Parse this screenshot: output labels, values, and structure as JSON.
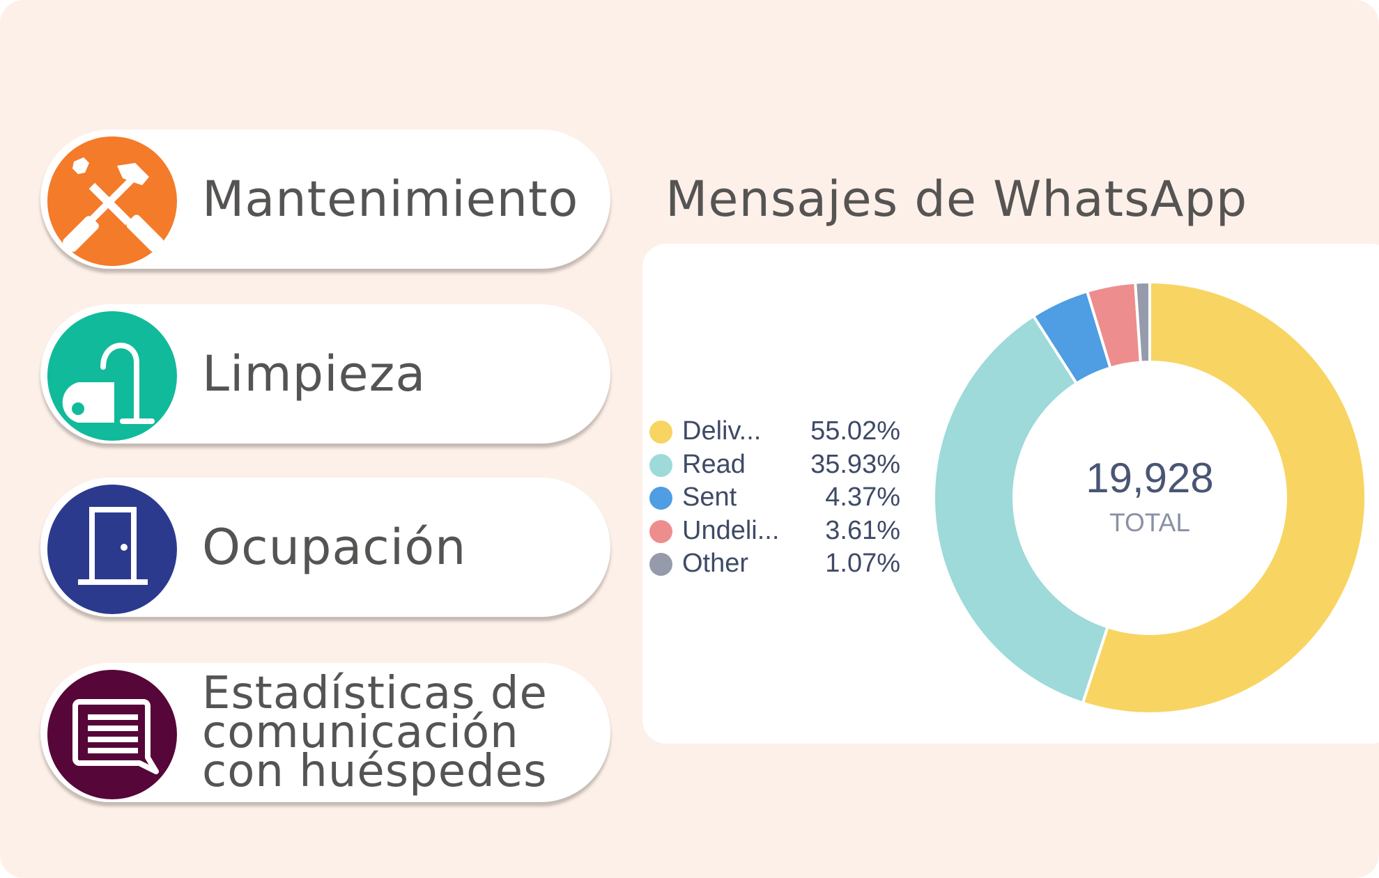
{
  "menu": {
    "items": [
      {
        "label": "Mantenimiento",
        "icon": "tools-icon",
        "color": "#f47b2a"
      },
      {
        "label": "Limpieza",
        "icon": "vacuum-cleaner-icon",
        "color": "#11ba9a"
      },
      {
        "label": "Ocupación",
        "icon": "door-icon",
        "color": "#2c3a8e"
      },
      {
        "label": "Estadísticas de comunicación con huéspedes",
        "icon": "message-icon",
        "color": "#560638"
      }
    ]
  },
  "chart_title": "Mensajes de WhatsApp",
  "chart_data": {
    "type": "pie",
    "title": "Mensajes de WhatsApp",
    "categories": [
      "Deliv...",
      "Read",
      "Sent",
      "Undeli...",
      "Other"
    ],
    "values": [
      55.02,
      35.93,
      4.37,
      3.61,
      1.07
    ],
    "value_labels": [
      "55.02%",
      "35.93%",
      "4.37%",
      "3.61%",
      "1.07%"
    ],
    "colors": [
      "#f8d462",
      "#9ddad9",
      "#4f9de2",
      "#ee8d8d",
      "#959bab"
    ],
    "total": "19,928",
    "total_label": "TOTAL",
    "legend": "left",
    "donut": true
  }
}
